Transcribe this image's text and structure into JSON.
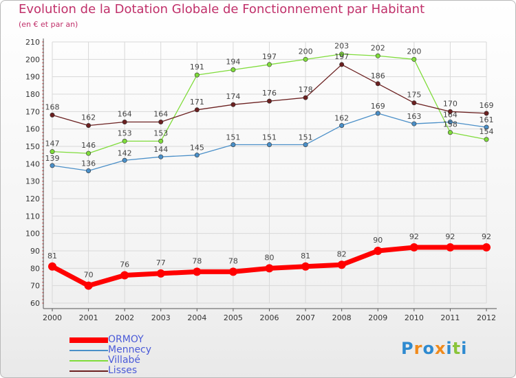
{
  "chart_data": {
    "type": "line",
    "title": "Evolution de la Dotation Globale de Fonctionnement par Habitant",
    "subtitle": "(en € et par an)",
    "categories": [
      "2000",
      "2001",
      "2002",
      "2003",
      "2004",
      "2005",
      "2006",
      "2007",
      "2008",
      "2009",
      "2010",
      "2011",
      "2012"
    ],
    "ylim": [
      60,
      210
    ],
    "yticks": [
      60,
      70,
      80,
      90,
      100,
      110,
      120,
      130,
      140,
      150,
      160,
      170,
      180,
      190,
      200,
      210
    ],
    "grid": true,
    "legend_position": "bottom-left",
    "series": [
      {
        "name": "ORMOY",
        "color": "#ff0000",
        "values": [
          81,
          70,
          76,
          77,
          78,
          78,
          80,
          81,
          82,
          90,
          92,
          92,
          92
        ]
      },
      {
        "name": "Mennecy",
        "color": "#4a8fc8",
        "values": [
          139,
          136,
          142,
          144,
          145,
          151,
          151,
          151,
          162,
          169,
          163,
          164,
          161
        ]
      },
      {
        "name": "Villabé",
        "color": "#7fdc3a",
        "values": [
          147,
          146,
          153,
          153,
          191,
          194,
          197,
          200,
          203,
          202,
          200,
          158,
          154
        ]
      },
      {
        "name": "Lisses",
        "color": "#6b2020",
        "values": [
          168,
          162,
          164,
          164,
          171,
          174,
          176,
          178,
          197,
          186,
          175,
          170,
          169
        ]
      }
    ],
    "data_labels": {
      "ORMOY": [
        "81",
        "70",
        "76",
        "77",
        "78",
        "78",
        "80",
        "81",
        "82",
        "90",
        "92",
        "92",
        "92"
      ],
      "Mennecy": [
        "139",
        "136",
        "142",
        "144",
        "145",
        "151",
        "151",
        "151",
        "162",
        "169",
        "163",
        "164",
        "161"
      ],
      "Villabé": [
        "147",
        "146",
        "153",
        "153",
        "191",
        "194",
        "197",
        "200",
        "203",
        "202",
        "200",
        "158",
        "154"
      ],
      "Lisses": [
        "168",
        "162",
        "164",
        "164",
        "171",
        "174",
        "176",
        "178",
        "197",
        "186",
        "175",
        "170",
        "169"
      ]
    }
  },
  "legend": {
    "items": [
      {
        "label": "ORMOY",
        "color": "#ff0000"
      },
      {
        "label": "Mennecy",
        "color": "#4a8fc8"
      },
      {
        "label": "Villabé",
        "color": "#7fdc3a"
      },
      {
        "label": "Lisses",
        "color": "#6b2020"
      }
    ]
  },
  "logo": {
    "letters": [
      "P",
      "r",
      "o",
      "x",
      "i",
      "t",
      "i"
    ],
    "colors": [
      "#2e8ad0",
      "#f08a1c",
      "#2e8ad0",
      "#f08a1c",
      "#2e8ad0",
      "#8ac43a",
      "#2e8ad0"
    ]
  }
}
